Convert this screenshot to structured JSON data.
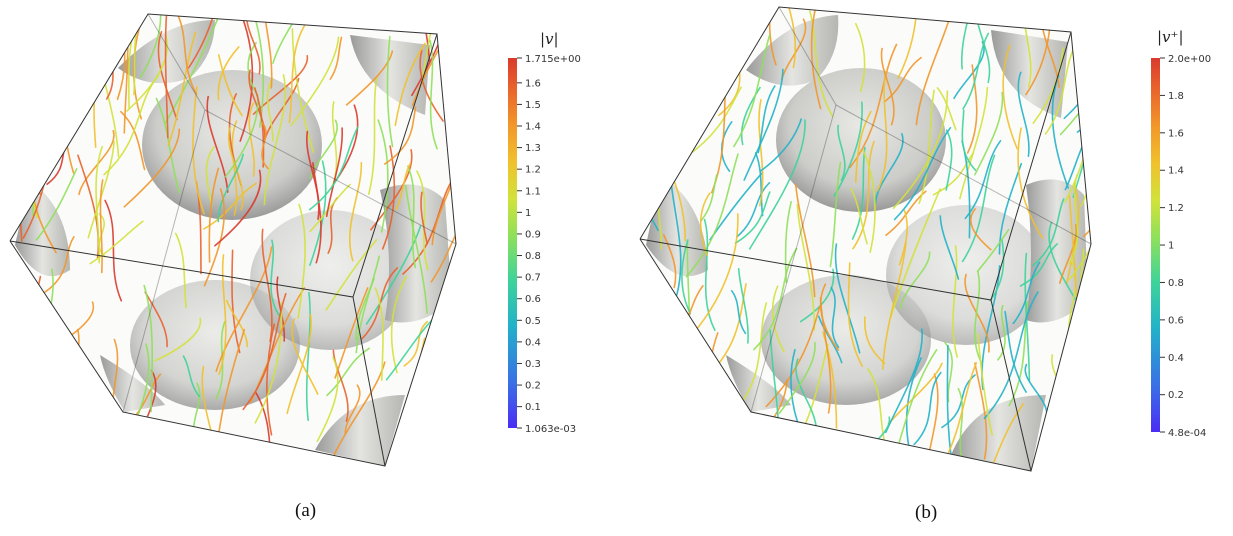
{
  "panels": [
    {
      "caption": "(a)",
      "colorbar": {
        "title": "|v|",
        "max_label": "1.715e+00",
        "min_label": "1.063e-03",
        "min": 0.001063,
        "max": 1.715,
        "tick_labels": [
          "1.6",
          "1.5",
          "1.4",
          "1.3",
          "1.2",
          "1.1",
          "1",
          "0.9",
          "0.8",
          "0.7",
          "0.6",
          "0.5",
          "0.4",
          "0.3",
          "0.2",
          "0.1"
        ],
        "tick_values": [
          1.6,
          1.5,
          1.4,
          1.3,
          1.2,
          1.1,
          1.0,
          0.9,
          0.8,
          0.7,
          0.6,
          0.5,
          0.4,
          0.3,
          0.2,
          0.1
        ],
        "colormap": "turbo"
      }
    },
    {
      "caption": "(b)",
      "colorbar": {
        "title": "|v⁺|",
        "max_label": "2.0e+00",
        "min_label": "4.8e-04",
        "min": 0.00048,
        "max": 2.0,
        "tick_labels": [
          "1.8",
          "1.6",
          "1.4",
          "1.2",
          "1",
          "0.8",
          "0.6",
          "0.4",
          "0.2"
        ],
        "tick_values": [
          1.8,
          1.6,
          1.4,
          1.2,
          1.0,
          0.8,
          0.6,
          0.4,
          0.2
        ],
        "colormap": "turbo"
      }
    }
  ],
  "colors": {
    "cube_edge": "#333333",
    "solid_shell": "#c9c9c6",
    "solid_shell_dark": "#8f8f8f",
    "turbo_stops": [
      "#4a2df5",
      "#3a6fe6",
      "#22b3c8",
      "#3ed39a",
      "#8fe05a",
      "#d2e23a",
      "#f0c12c",
      "#f2962a",
      "#e8622c",
      "#d93a2c"
    ]
  }
}
